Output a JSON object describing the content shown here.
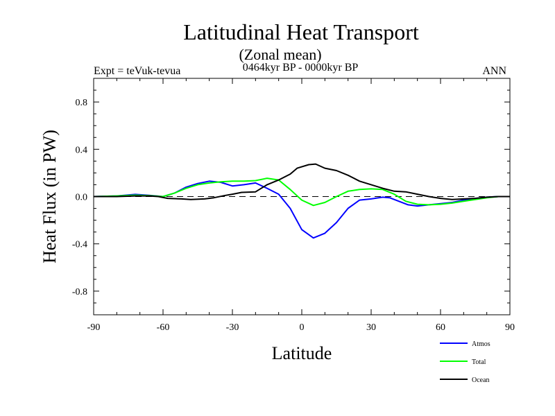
{
  "chart_data": {
    "type": "line",
    "title": "Latitudinal Heat Transport",
    "subtitle": "(Zonal mean)",
    "period": "0464kyr BP - 0000kyr BP",
    "experiment": "Expt = teVuk-tevua",
    "season": "ANN",
    "xlabel": "Latitude",
    "ylabel": "Heat Flux (in PW)",
    "xlim": [
      -90,
      90
    ],
    "ylim": [
      -1.0,
      1.0
    ],
    "xticks": [
      -90,
      -60,
      -30,
      0,
      30,
      60,
      90
    ],
    "xtick_labels": [
      "-90",
      "-60",
      "-30",
      "0",
      "30",
      "60",
      "90"
    ],
    "yticks": [
      -0.8,
      -0.4,
      0.0,
      0.4,
      0.8
    ],
    "ytick_labels": [
      "-0.8",
      "-0.4",
      "0.0",
      "0.4",
      "0.8"
    ],
    "reference_line": 0.0,
    "legend_placement": "bottom-right",
    "series": [
      {
        "name": "Atmos",
        "color": "#0000ff",
        "x": [
          -90,
          -80,
          -72,
          -66,
          -60,
          -55,
          -50,
          -45,
          -40,
          -35,
          -30,
          -25,
          -20,
          -15,
          -10,
          -5,
          0,
          5,
          10,
          15,
          20,
          25,
          30,
          35,
          38,
          42,
          46,
          50,
          55,
          60,
          65,
          70,
          75,
          80,
          85,
          90
        ],
        "y": [
          0.0,
          0.005,
          0.018,
          0.01,
          0.0,
          0.03,
          0.08,
          0.11,
          0.13,
          0.12,
          0.09,
          0.1,
          0.115,
          0.07,
          0.02,
          -0.1,
          -0.28,
          -0.35,
          -0.31,
          -0.22,
          -0.1,
          -0.03,
          -0.02,
          -0.005,
          -0.01,
          -0.04,
          -0.07,
          -0.08,
          -0.07,
          -0.06,
          -0.05,
          -0.03,
          -0.015,
          -0.005,
          0.0,
          0.0
        ]
      },
      {
        "name": "Total",
        "color": "#00ff00",
        "x": [
          -90,
          -80,
          -72,
          -66,
          -60,
          -55,
          -50,
          -45,
          -40,
          -35,
          -30,
          -25,
          -20,
          -15,
          -10,
          -5,
          0,
          5,
          10,
          15,
          20,
          25,
          30,
          35,
          40,
          45,
          50,
          55,
          60,
          65,
          70,
          75,
          80,
          85,
          90
        ],
        "y": [
          0.0,
          0.005,
          0.012,
          0.008,
          0.0,
          0.03,
          0.07,
          0.1,
          0.115,
          0.125,
          0.13,
          0.13,
          0.135,
          0.155,
          0.14,
          0.06,
          -0.03,
          -0.075,
          -0.05,
          0.0,
          0.045,
          0.06,
          0.065,
          0.06,
          0.02,
          -0.04,
          -0.065,
          -0.07,
          -0.065,
          -0.055,
          -0.04,
          -0.025,
          -0.01,
          0.0,
          0.0
        ]
      },
      {
        "name": "Ocean",
        "color": "#000000",
        "x": [
          -90,
          -80,
          -72,
          -66,
          -62,
          -58,
          -52,
          -48,
          -42,
          -38,
          -33,
          -30,
          -26,
          -20,
          -15,
          -10,
          -5,
          -2,
          3,
          6,
          10,
          15,
          20,
          25,
          30,
          35,
          40,
          45,
          50,
          55,
          60,
          65,
          70,
          75,
          80,
          85,
          90
        ],
        "y": [
          0.0,
          0.0,
          0.005,
          0.005,
          0.0,
          -0.015,
          -0.02,
          -0.025,
          -0.02,
          -0.01,
          0.01,
          0.02,
          0.035,
          0.04,
          0.1,
          0.14,
          0.19,
          0.24,
          0.27,
          0.275,
          0.24,
          0.22,
          0.18,
          0.13,
          0.1,
          0.07,
          0.045,
          0.04,
          0.02,
          0.0,
          -0.015,
          -0.025,
          -0.02,
          -0.015,
          -0.005,
          0.0,
          0.0
        ]
      }
    ]
  }
}
